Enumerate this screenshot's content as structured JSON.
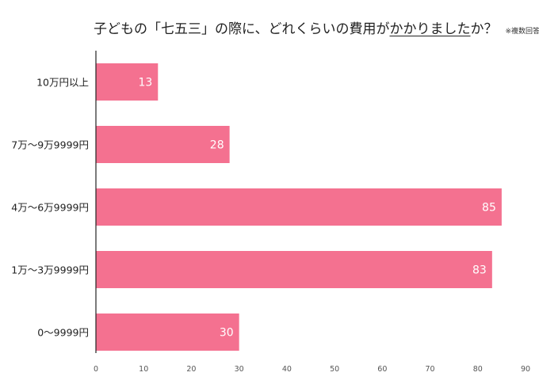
{
  "chart_data": {
    "type": "bar",
    "orientation": "horizontal",
    "title_parts": [
      "子どもの「七五三」の際に、どれくらいの費用が",
      "かかりました",
      "か？"
    ],
    "note": "※複数回答可",
    "categories": [
      "10万円以上",
      "7万～9万9999円",
      "4万～6万9999円",
      "1万～3万9999円",
      "0～9999円"
    ],
    "values": [
      13,
      28,
      85,
      83,
      30
    ],
    "xlim": [
      0,
      90
    ],
    "xticks": [
      "0",
      "10",
      "20",
      "30",
      "40",
      "50",
      "60",
      "70",
      "80",
      "90"
    ],
    "grid": false,
    "bar_color": "#f47190",
    "xlabel": "",
    "ylabel": ""
  }
}
